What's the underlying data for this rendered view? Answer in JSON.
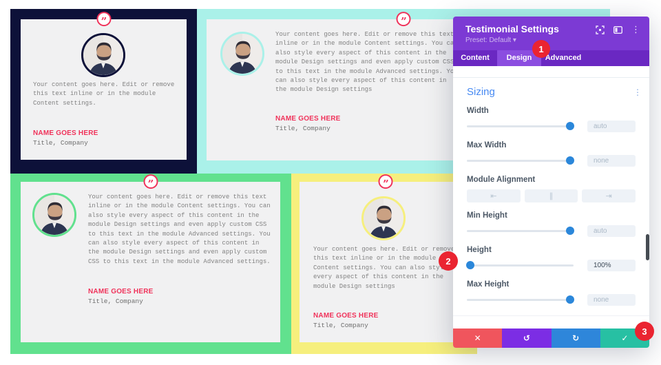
{
  "window": {
    "title": "Testimonial Settings",
    "preset_label": "Preset: Default",
    "preset_caret": "▾",
    "header_icons": [
      {
        "name": "expand-icon",
        "glyph": "svg-expand"
      },
      {
        "name": "panel-toggle-icon",
        "glyph": "svg-panel"
      },
      {
        "name": "kebab-menu-icon",
        "glyph": "⋮"
      }
    ]
  },
  "tabs": [
    {
      "label": "Content",
      "active": false
    },
    {
      "label": "Design",
      "active": true
    },
    {
      "label": "Advanced",
      "active": false
    }
  ],
  "sizing": {
    "title": "Sizing",
    "options_menu_icon": "⋮",
    "fields": [
      {
        "type": "slider",
        "label": "Width",
        "value": "auto",
        "value_active": false,
        "handle_pct": 97
      },
      {
        "type": "slider",
        "label": "Max Width",
        "value": "none",
        "value_active": false,
        "handle_pct": 97
      },
      {
        "type": "align",
        "label": "Module Alignment",
        "buttons": [
          {
            "name": "align-left-icon",
            "glyph": "⇤"
          },
          {
            "name": "align-center-icon",
            "glyph": "∥"
          },
          {
            "name": "align-right-icon",
            "glyph": "⇥"
          }
        ]
      },
      {
        "type": "slider",
        "label": "Min Height",
        "value": "auto",
        "value_active": false,
        "handle_pct": 97
      },
      {
        "type": "slider",
        "label": "Height",
        "value": "100%",
        "value_active": true,
        "handle_pct": 3
      },
      {
        "type": "slider",
        "label": "Max Height",
        "value": "none",
        "value_active": false,
        "handle_pct": 97
      }
    ]
  },
  "footer": {
    "buttons": [
      {
        "name": "discard-button",
        "glyph": "✕",
        "color": "#f0555d"
      },
      {
        "name": "undo-button",
        "glyph": "↺",
        "color": "#7c2de4"
      },
      {
        "name": "redo-button",
        "glyph": "↻",
        "color": "#2e86da"
      },
      {
        "name": "save-button",
        "glyph": "✓",
        "color": "#27c0a3"
      }
    ]
  },
  "badges": [
    {
      "n": "1"
    },
    {
      "n": "2"
    },
    {
      "n": "3"
    }
  ],
  "accent": {
    "red": "#f0325a",
    "badge_red": "#ea2431",
    "card_bg": "#f1f1f2",
    "slider_blue": "#2b87da"
  },
  "testimonials": [
    {
      "theme": "navy",
      "section_color": "#0d1139",
      "ring_color": "#0d1139",
      "quote_glyph": "”",
      "lines": [
        "Your content goes here. Edit or remove",
        "this text inline or in the module",
        "Content settings."
      ],
      "name": "NAME GOES HERE",
      "title": "Title, Company"
    },
    {
      "theme": "cyan",
      "section_color": "#aaf1e9",
      "ring_color": "#aaf1e9",
      "quote_glyph": "”",
      "lines": [
        "Your content goes here. Edit or remove this text",
        "inline or in the module Content settings. You can",
        "also style every aspect of this content in the",
        "module Design settings and even apply custom CSS",
        "to this text in the module Advanced settings. You",
        "can also style every aspect of this content in",
        "the module Design settings"
      ],
      "name": "NAME GOES HERE",
      "title": "Title, Company"
    },
    {
      "theme": "green",
      "section_color": "#61e18e",
      "ring_color": "#61e18e",
      "quote_glyph": "”",
      "lines": [
        "Your content goes here. Edit or remove this text",
        "inline or in the module Content settings. You can",
        "also style every aspect of this content in the",
        "module Design settings and even apply custom CSS",
        "to this text in the module Advanced settings. You",
        "can also style every aspect of this content in",
        "the module Design settings and even apply custom",
        "CSS to this text in the module Advanced settings."
      ],
      "name": "NAME GOES HERE",
      "title": "Title, Company"
    },
    {
      "theme": "yellow",
      "section_color": "#f6ef7d",
      "ring_color": "#f6ef7d",
      "quote_glyph": "”",
      "lines": [
        "Your content goes here. Edit or remove",
        "this text inline or in the module",
        "Content settings. You can also style",
        "every aspect of this content in the",
        "module Design settings"
      ],
      "name": "NAME GOES HERE",
      "title": "Title, Company"
    }
  ]
}
